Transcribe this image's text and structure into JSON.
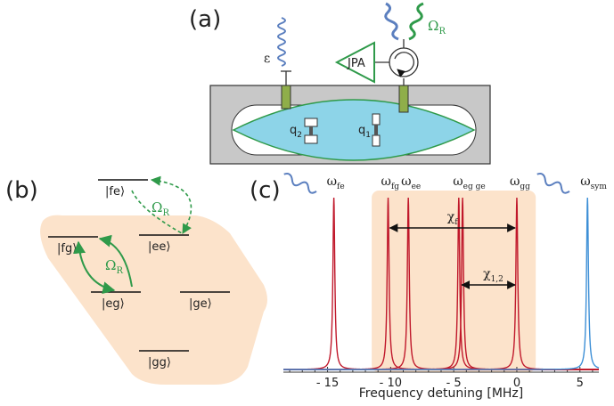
{
  "panels": {
    "a": "(a)",
    "b": "(b)",
    "c": "(c)"
  },
  "panel_a": {
    "jpa_label": "JPA",
    "drive_label": "ε",
    "raman_label": "Ω",
    "raman_sub": "R",
    "qubit1": "q",
    "qubit1_sub": "1",
    "qubit2": "q",
    "qubit2_sub": "2",
    "colors": {
      "cavity": "#8dd4e8",
      "wall": "#c8c8c8",
      "green": "#2f9a4a",
      "blue": "#5b7fbf"
    }
  },
  "panel_b": {
    "levels": [
      "|fe⟩",
      "|fg⟩",
      "|ee⟩",
      "|eg⟩",
      "|ge⟩",
      "|gg⟩"
    ],
    "raman_top": "Ω",
    "raman_top_sub": "R",
    "raman_left": "Ω",
    "raman_left_sub": "R",
    "colors": {
      "region": "#fce3cb",
      "green": "#2f9a4a"
    }
  },
  "chart_data": {
    "type": "line",
    "xlabel": "Frequency detuning [MHz]",
    "ylabel": "",
    "xlim": [
      -18.5,
      6.5
    ],
    "ticks": [
      -15,
      -10,
      -5,
      0,
      5
    ],
    "tick_labels": [
      "- 15",
      "- 10",
      "- 5",
      "0",
      "5"
    ],
    "peak_labels": [
      {
        "sym": "ω",
        "sub": "fe",
        "x": -14.5
      },
      {
        "sym": "ω",
        "sub": "fg",
        "x": -10.2
      },
      {
        "sym": "ω",
        "sub": "ee",
        "x": -8.6
      },
      {
        "sym": "ω",
        "sub": "eg ge",
        "x": -4.5
      },
      {
        "sym": "ω",
        "sub": "gg",
        "x": 0.0
      },
      {
        "sym": "ω",
        "sub": "sym",
        "x": 5.6
      }
    ],
    "series": [
      {
        "color": "#c0182b",
        "peaks": [
          -14.5,
          -10.2,
          -8.6,
          -4.6,
          -4.3,
          0.0
        ]
      },
      {
        "color": "#3d8fd6",
        "peaks": [
          5.6
        ]
      }
    ],
    "annotations": [
      {
        "label": "χ",
        "sub": "f",
        "from": -10.2,
        "to": 0.0
      },
      {
        "label": "χ",
        "sub": "1,2",
        "from": -4.5,
        "to": 0.0
      }
    ],
    "shaded_range": [
      -11.5,
      1.5
    ],
    "shade_color": "#fce3cb"
  }
}
